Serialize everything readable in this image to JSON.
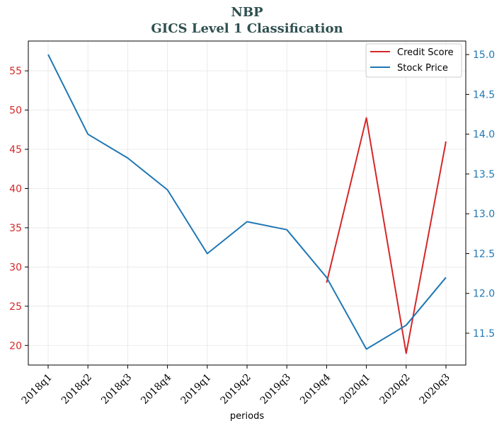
{
  "chart_data": {
    "type": "line",
    "title": "NBP",
    "subtitle": "GICS Level 1 Classification",
    "xlabel": "periods",
    "ylabel_left": "",
    "ylabel_right": "",
    "categories": [
      "2018q1",
      "2018q2",
      "2018q3",
      "2018q4",
      "2019q1",
      "2019q2",
      "2019q3",
      "2019q4",
      "2020q1",
      "2020q2",
      "2020q3"
    ],
    "y_left": {
      "min": 17.5,
      "max": 58.8,
      "ticks": [
        20,
        25,
        30,
        35,
        40,
        45,
        50,
        55
      ],
      "color": "#d62728"
    },
    "y_right": {
      "min": 11.1,
      "max": 15.17,
      "ticks": [
        "11.5",
        "12.0",
        "12.5",
        "13.0",
        "13.5",
        "14.0",
        "14.5",
        "15.0"
      ],
      "color": "#1f77b4"
    },
    "grid": true,
    "legend_position": "top-right",
    "series": [
      {
        "name": "Credit Score",
        "axis": "left",
        "color": "#d62728",
        "values": [
          null,
          null,
          null,
          null,
          null,
          null,
          null,
          28,
          49,
          19,
          46
        ]
      },
      {
        "name": "Stock Price",
        "axis": "right",
        "color": "#1f77b4",
        "values": [
          15.0,
          14.0,
          13.7,
          13.3,
          12.5,
          12.9,
          12.8,
          12.2,
          11.3,
          11.6,
          12.2
        ]
      }
    ]
  }
}
